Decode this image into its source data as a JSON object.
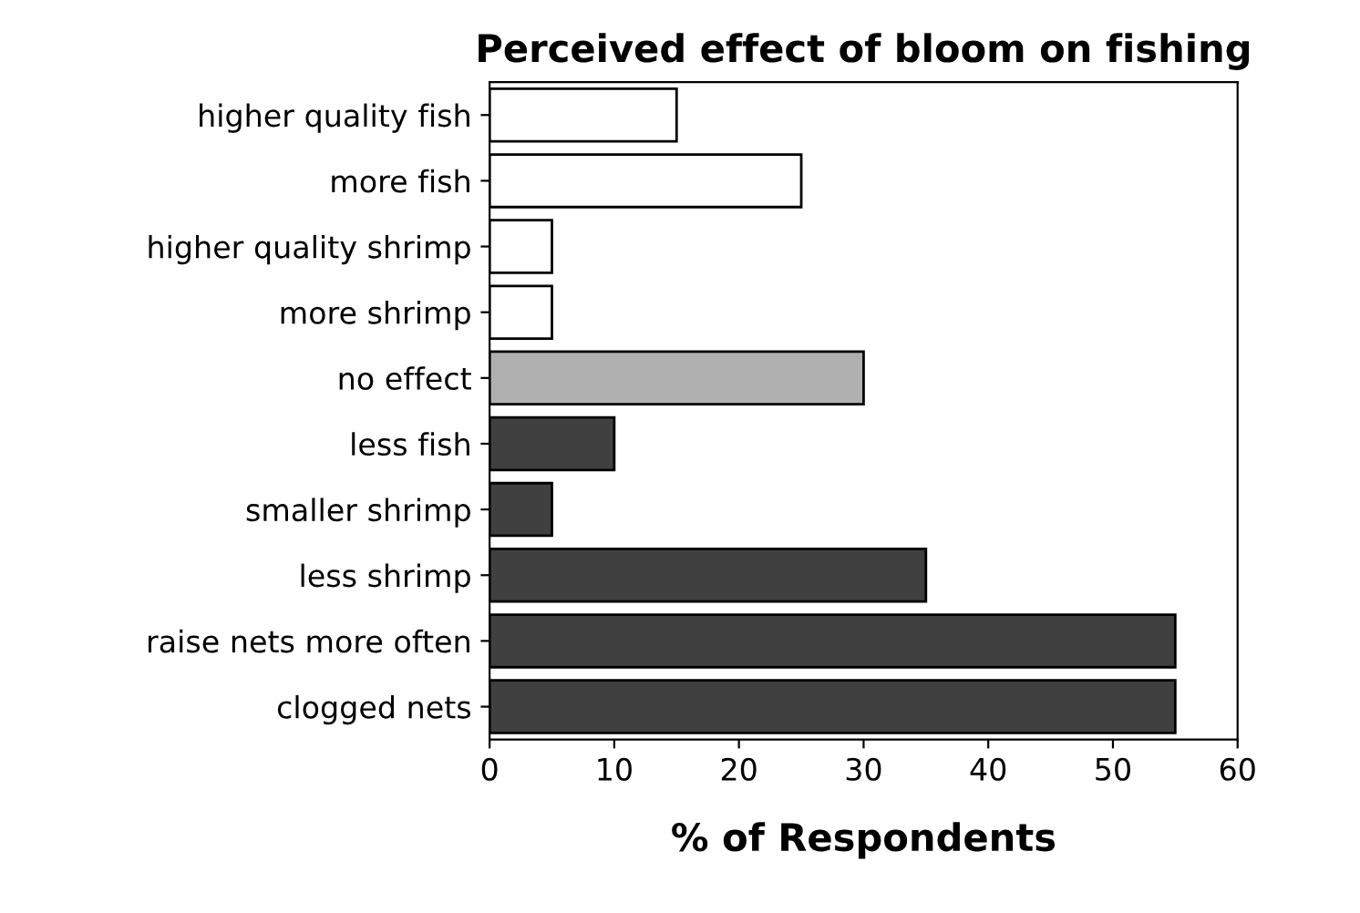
{
  "chart_data": {
    "type": "bar",
    "orientation": "horizontal",
    "title": "Perceived effect of bloom on fishing",
    "xlabel": "% of Respondents",
    "categories": [
      "higher quality fish",
      "more fish",
      "higher quality shrimp",
      "more shrimp",
      "no effect",
      "less fish",
      "smaller shrimp",
      "less shrimp",
      "raise nets more often",
      "clogged nets"
    ],
    "values": [
      15,
      25,
      5,
      5,
      30,
      10,
      5,
      35,
      55,
      55
    ],
    "colors": [
      "#ffffff",
      "#ffffff",
      "#ffffff",
      "#ffffff",
      "#b0b0b0",
      "#404040",
      "#404040",
      "#404040",
      "#404040",
      "#404040"
    ],
    "xlim": [
      0,
      60
    ],
    "xticks": [
      0,
      10,
      20,
      30,
      40,
      50,
      60
    ],
    "grid": false
  }
}
